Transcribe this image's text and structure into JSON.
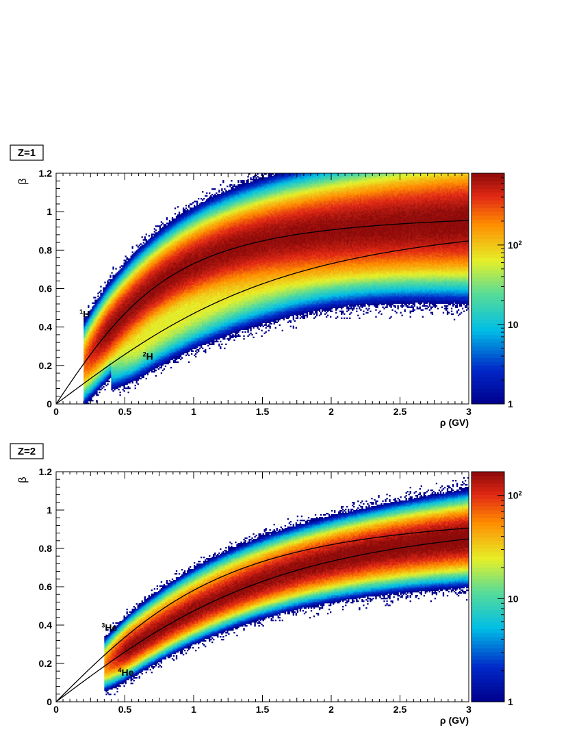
{
  "chart_data": [
    {
      "type": "heatmap",
      "panel_label": "Z=1",
      "xlabel": "ρ (GV)",
      "ylabel": "β",
      "xlim": [
        0,
        3
      ],
      "ylim": [
        0,
        1.2
      ],
      "x_ticks": [
        "0",
        "0.5",
        "1",
        "1.5",
        "2",
        "2.5",
        "3"
      ],
      "y_ticks": [
        "0",
        "0.2",
        "0.4",
        "0.6",
        "0.8",
        "1",
        "1.2"
      ],
      "colorbar": {
        "scale": "log",
        "range": [
          1,
          800
        ],
        "ticks": [
          {
            "value": 1,
            "label": "1"
          },
          {
            "value": 10,
            "label": "10"
          },
          {
            "value": 100,
            "label": "10",
            "sup": "2"
          }
        ]
      },
      "curves": [
        {
          "label_sup": "1",
          "label": "H",
          "mass_GeV": 0.938,
          "label_at": [
            0.17,
            0.45
          ]
        },
        {
          "label_sup": "2",
          "label": "H",
          "mass_GeV": 1.876,
          "label_at": [
            0.63,
            0.23
          ]
        }
      ],
      "density": [
        {
          "mass_GeV": 0.938,
          "rigidity_min": 0.2,
          "peak_counts": 800,
          "width": 0.062
        },
        {
          "mass_GeV": 1.876,
          "rigidity_min": 0.4,
          "peak_counts": 60,
          "width": 0.05
        }
      ],
      "grid": false
    },
    {
      "type": "heatmap",
      "panel_label": "Z=2",
      "xlabel": "ρ (GV)",
      "ylabel": "β",
      "xlim": [
        0,
        3
      ],
      "ylim": [
        0,
        1.2
      ],
      "x_ticks": [
        "0",
        "0.5",
        "1",
        "1.5",
        "2",
        "2.5",
        "3"
      ],
      "y_ticks": [
        "0",
        "0.2",
        "0.4",
        "0.6",
        "0.8",
        "1",
        "1.2"
      ],
      "colorbar": {
        "scale": "log",
        "range": [
          1,
          170
        ],
        "ticks": [
          {
            "value": 1,
            "label": "1"
          },
          {
            "value": 10,
            "label": "10"
          },
          {
            "value": 100,
            "label": "10",
            "sup": "2"
          }
        ]
      },
      "curves": [
        {
          "label_sup": "3",
          "label": "He",
          "mass_GeV": 1.4,
          "label_at": [
            0.33,
            0.37
          ]
        },
        {
          "label_sup": "4",
          "label": "He",
          "mass_GeV": 1.86,
          "label_at": [
            0.45,
            0.135
          ]
        }
      ],
      "density": [
        {
          "mass_GeV": 1.86,
          "rigidity_min": 0.35,
          "peak_counts": 170,
          "width": 0.042
        },
        {
          "mass_GeV": 1.4,
          "rigidity_min": 0.35,
          "peak_counts": 25,
          "width": 0.035
        }
      ],
      "grid": false
    }
  ]
}
